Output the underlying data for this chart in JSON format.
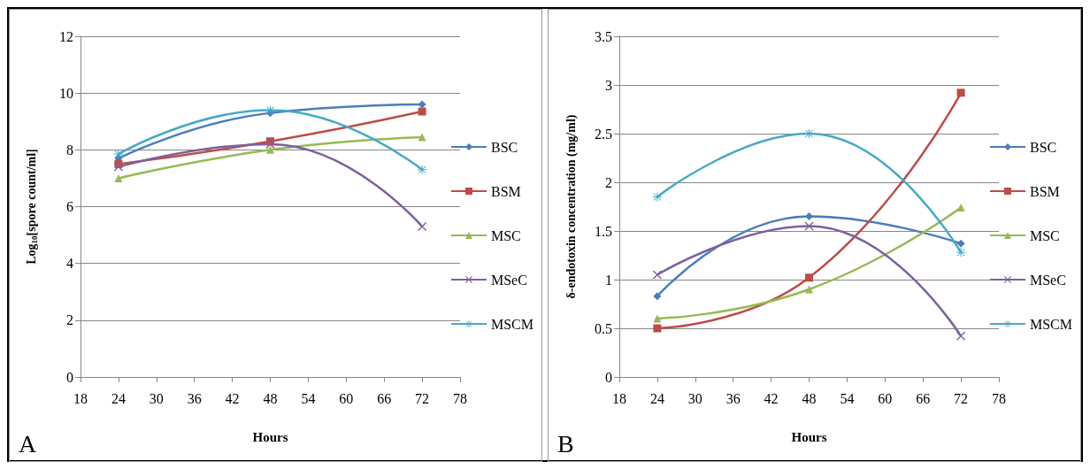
{
  "chart_data": [
    {
      "type": "line",
      "xlabel": "Hours",
      "ylabel": "Log$_{10}$[spore count/ml]",
      "annotations": [
        "A"
      ],
      "xlim": [
        18,
        78
      ],
      "xticks": [
        18,
        24,
        30,
        36,
        42,
        48,
        54,
        60,
        66,
        72,
        78
      ],
      "ylim": [
        0,
        12
      ],
      "yticks": [
        0,
        2,
        4,
        6,
        8,
        10,
        12
      ],
      "grid": "y",
      "legend": "right",
      "x": [
        24,
        48,
        72
      ],
      "series": [
        {
          "name": "BSC",
          "color": "#4a7ebb",
          "marker": "diamond",
          "values": [
            7.7,
            9.3,
            9.6
          ]
        },
        {
          "name": "BSM",
          "color": "#be4b48",
          "marker": "square",
          "values": [
            7.5,
            8.3,
            9.35
          ]
        },
        {
          "name": "MSC",
          "color": "#98b954",
          "marker": "triangle",
          "values": [
            7.0,
            8.0,
            8.45
          ]
        },
        {
          "name": "MSeC",
          "color": "#7d60a0",
          "marker": "cross",
          "values": [
            7.4,
            8.2,
            5.3
          ]
        },
        {
          "name": "MSCM",
          "color": "#46aac5",
          "marker": "star",
          "values": [
            7.85,
            9.4,
            7.3
          ]
        }
      ]
    },
    {
      "type": "line",
      "xlabel": "Hours",
      "ylabel": "δ-endotoxin concentration (mg/ml)",
      "annotations": [
        "B"
      ],
      "xlim": [
        18,
        78
      ],
      "xticks": [
        18,
        24,
        30,
        36,
        42,
        48,
        54,
        60,
        66,
        72,
        78
      ],
      "ylim": [
        0,
        3.5
      ],
      "yticks": [
        0,
        0.5,
        1,
        1.5,
        2,
        2.5,
        3,
        3.5
      ],
      "grid": "y",
      "legend": "right",
      "x": [
        24,
        48,
        72
      ],
      "series": [
        {
          "name": "BSC",
          "color": "#4a7ebb",
          "marker": "diamond",
          "values": [
            0.83,
            1.65,
            1.37
          ]
        },
        {
          "name": "BSM",
          "color": "#be4b48",
          "marker": "square",
          "values": [
            0.5,
            1.02,
            2.92
          ]
        },
        {
          "name": "MSC",
          "color": "#98b954",
          "marker": "triangle",
          "values": [
            0.6,
            0.9,
            1.74
          ]
        },
        {
          "name": "MSeC",
          "color": "#7d60a0",
          "marker": "cross",
          "values": [
            1.05,
            1.55,
            0.42
          ]
        },
        {
          "name": "MSCM",
          "color": "#46aac5",
          "marker": "star",
          "values": [
            1.85,
            2.5,
            1.28
          ]
        }
      ]
    }
  ]
}
